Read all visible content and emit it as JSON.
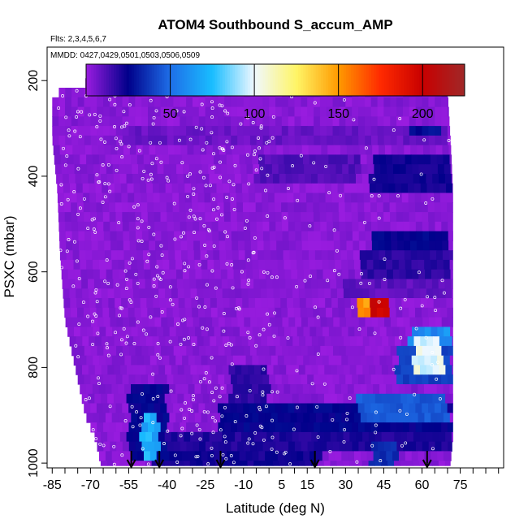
{
  "chart_data": {
    "type": "heatmap",
    "title": "ATOM4 Southbound S_accum_AMP",
    "subtitle_flights": "Flts: 2,3,4,5,6,7",
    "subtitle_dates": "MMDD: 0427,0429,0501,0503,0506,0509",
    "xlabel": "Latitude (deg N)",
    "ylabel": "PSXC (mbar)",
    "xlim": [
      -87,
      92
    ],
    "ylim": [
      1010,
      130
    ],
    "y_reversed": true,
    "x_ticks": [
      -85,
      -70,
      -55,
      -40,
      -25,
      -10,
      5,
      15,
      30,
      45,
      60,
      75
    ],
    "x_minor_ticks": [
      -80,
      -75,
      -65,
      -60,
      -50,
      -45,
      -35,
      -30,
      -20,
      -15,
      -5,
      0,
      10,
      20,
      25,
      35,
      40,
      50,
      55,
      65,
      70,
      80,
      85,
      90
    ],
    "y_ticks": [
      200,
      400,
      600,
      800,
      1000
    ],
    "colorbar": {
      "range": [
        0,
        225
      ],
      "ticks": [
        50,
        100,
        150,
        200
      ],
      "stops": [
        {
          "v": 0,
          "c": "#9a1ce0"
        },
        {
          "v": 25,
          "c": "#00008a"
        },
        {
          "v": 50,
          "c": "#1e6ee8"
        },
        {
          "v": 75,
          "c": "#19bdff"
        },
        {
          "v": 100,
          "c": "#f0f8ff"
        },
        {
          "v": 125,
          "c": "#fff566"
        },
        {
          "v": 150,
          "c": "#ff9a00"
        },
        {
          "v": 175,
          "c": "#ff2a00"
        },
        {
          "v": 200,
          "c": "#c80000"
        },
        {
          "v": 225,
          "c": "#a02828"
        }
      ]
    },
    "data_extent": [
      {
        "p": 180,
        "lat_min": -59,
        "lat_max": 69
      },
      {
        "p": 230,
        "lat_min": -85,
        "lat_max": 70
      },
      {
        "p": 320,
        "lat_min": -85,
        "lat_max": 71
      },
      {
        "p": 430,
        "lat_min": -83,
        "lat_max": 72
      },
      {
        "p": 560,
        "lat_min": -82,
        "lat_max": 72
      },
      {
        "p": 700,
        "lat_min": -80,
        "lat_max": 72
      },
      {
        "p": 800,
        "lat_min": -76,
        "lat_max": 72
      },
      {
        "p": 900,
        "lat_min": -72,
        "lat_max": 72
      },
      {
        "p": 950,
        "lat_min": -68,
        "lat_max": 72
      },
      {
        "p": 1000,
        "lat_min": -66,
        "lat_max": 71
      }
    ],
    "background_value": 3,
    "features": [
      {
        "lat": [
          -57,
          70
        ],
        "p": [
          290,
          330
        ],
        "value": 8
      },
      {
        "lat": [
          -5,
          35
        ],
        "p": [
          360,
          420
        ],
        "value": 12
      },
      {
        "lat": [
          40,
          72
        ],
        "p": [
          360,
          440
        ],
        "value": 22
      },
      {
        "lat": [
          55,
          68
        ],
        "p": [
          300,
          320
        ],
        "value": 28
      },
      {
        "lat": [
          40,
          70
        ],
        "p": [
          510,
          560
        ],
        "value": 25
      },
      {
        "lat": [
          35,
          72
        ],
        "p": [
          560,
          610
        ],
        "value": 18
      },
      {
        "lat": [
          30,
          72
        ],
        "p": [
          610,
          650
        ],
        "value": 10
      },
      {
        "lat": [
          35,
          43
        ],
        "p": [
          650,
          700
        ],
        "value": 150
      },
      {
        "lat": [
          40,
          47
        ],
        "p": [
          650,
          700
        ],
        "value": 200
      },
      {
        "lat": [
          43,
          46
        ],
        "p": [
          650,
          700
        ],
        "value": 120
      },
      {
        "lat": [
          55,
          72
        ],
        "p": [
          710,
          760
        ],
        "value": 60
      },
      {
        "lat": [
          57,
          68
        ],
        "p": [
          740,
          820
        ],
        "value": 100
      },
      {
        "lat": [
          50,
          72
        ],
        "p": [
          760,
          830
        ],
        "value": 40
      },
      {
        "lat": [
          -20,
          72
        ],
        "p": [
          880,
          930
        ],
        "value": 25
      },
      {
        "lat": [
          35,
          70
        ],
        "p": [
          860,
          920
        ],
        "value": 45
      },
      {
        "lat": [
          -45,
          72
        ],
        "p": [
          930,
          970
        ],
        "value": 20
      },
      {
        "lat": [
          -55,
          -40
        ],
        "p": [
          830,
          1000
        ],
        "value": 25
      },
      {
        "lat": [
          -50,
          -43
        ],
        "p": [
          900,
          1000
        ],
        "value": 70
      },
      {
        "lat": [
          -15,
          0
        ],
        "p": [
          800,
          1000
        ],
        "value": 18
      },
      {
        "lat": [
          -45,
          20
        ],
        "p": [
          970,
          1005
        ],
        "value": 22
      },
      {
        "lat": [
          40,
          50
        ],
        "p": [
          960,
          1005
        ],
        "value": 35
      }
    ],
    "arrow_latitudes": [
      -54,
      -43,
      -19,
      18,
      62
    ],
    "point_count_estimate": 520
  }
}
